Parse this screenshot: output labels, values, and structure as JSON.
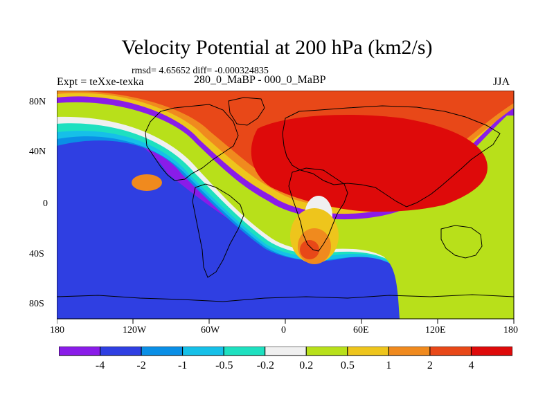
{
  "chart_data": {
    "type": "heatmap",
    "title": "Velocity Potential at 200 hPa (km2/s)",
    "annotation": "rmsd= 4.65652 diff= -0.000324835",
    "left_label": "Expt = teXxe-texka",
    "center_label": "280_0_MaBP - 000_0_MaBP",
    "right_label": "JJA",
    "x_ticks": [
      "180",
      "120W",
      "60W",
      "0",
      "60E",
      "120E",
      "180"
    ],
    "y_ticks": [
      "80N",
      "40N",
      "0",
      "40S",
      "80S"
    ],
    "xlim": [
      -180,
      180
    ],
    "ylim": [
      -90,
      90
    ],
    "colorbar": {
      "labels": [
        "-4",
        "-2",
        "-1",
        "-0.5",
        "-0.2",
        "0.2",
        "0.5",
        "1",
        "2",
        "4"
      ],
      "colors": [
        "#8a1ce8",
        "#2f3fe2",
        "#0a8fe6",
        "#16c0e8",
        "#1ee0c0",
        "#f0f0f0",
        "#b8e01a",
        "#eec51c",
        "#f08a1e",
        "#e84818",
        "#de0a0a"
      ]
    }
  }
}
